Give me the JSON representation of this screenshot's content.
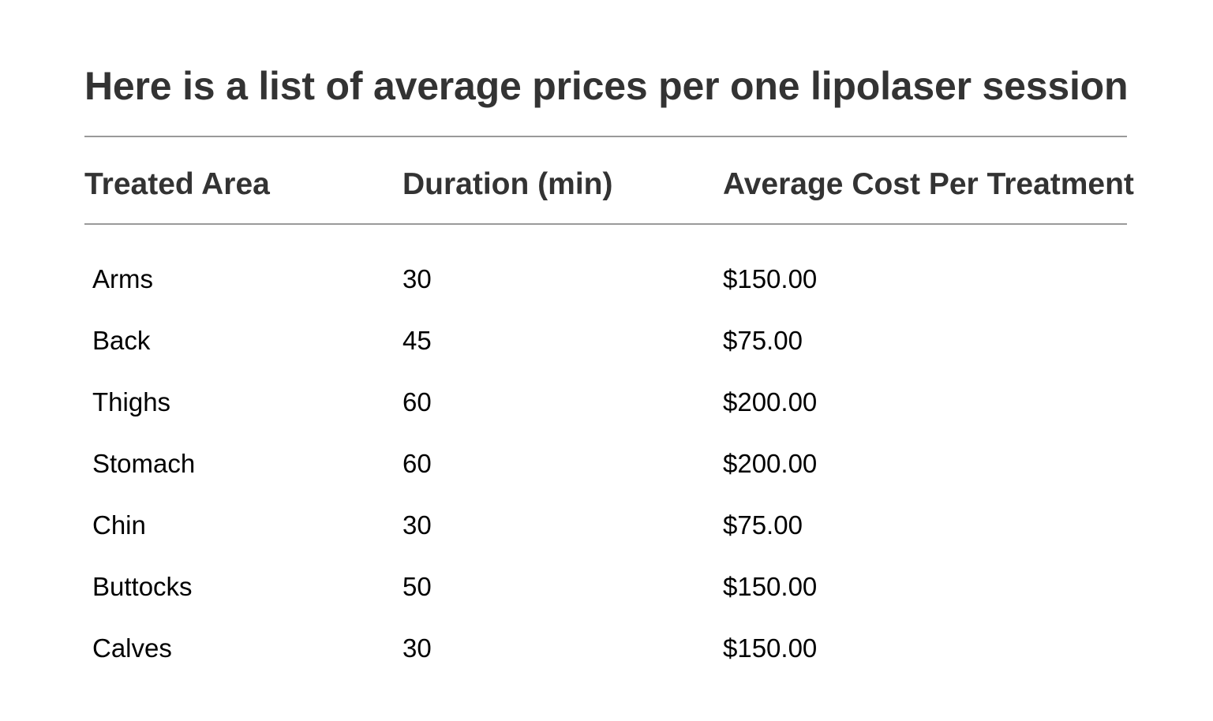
{
  "title": "Here is a list of average prices per one lipolaser session",
  "table": {
    "headers": [
      "Treated Area",
      "Duration (min)",
      "Average Cost Per Treatment"
    ],
    "rows": [
      [
        "Arms",
        "30",
        "$150.00"
      ],
      [
        "Back",
        "45",
        "$75.00"
      ],
      [
        "Thighs",
        "60",
        "$200.00"
      ],
      [
        "Stomach",
        "60",
        "$200.00"
      ],
      [
        "Chin",
        "30",
        "$75.00"
      ],
      [
        "Buttocks",
        "50",
        "$150.00"
      ],
      [
        "Calves",
        "30",
        "$150.00"
      ]
    ]
  }
}
